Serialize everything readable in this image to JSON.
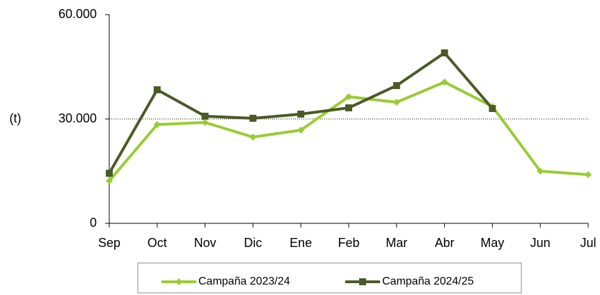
{
  "chart_data": {
    "type": "line",
    "y_label": "(t)",
    "categories": [
      "Sep",
      "Oct",
      "Nov",
      "Dic",
      "Ene",
      "Feb",
      "Mar",
      "Abr",
      "May",
      "Jun",
      "Jul"
    ],
    "series": [
      {
        "name": "Campaña 2023/24",
        "color": "#99cc33",
        "marker": "diamond",
        "values": [
          12200,
          28400,
          29000,
          24800,
          26800,
          36400,
          34800,
          40600,
          33600,
          15000,
          14000
        ]
      },
      {
        "name": "Campaña 2024/25",
        "color": "#4b5a27",
        "marker": "square",
        "values": [
          14400,
          38400,
          30800,
          30200,
          31400,
          33200,
          39600,
          49000,
          33000,
          null,
          null
        ]
      }
    ],
    "ylim": [
      0,
      60000
    ],
    "yticks": [
      0,
      {
        "value": 30000,
        "label": "30.000"
      },
      {
        "value": 60000,
        "label": "60.000"
      }
    ],
    "grid": true
  }
}
